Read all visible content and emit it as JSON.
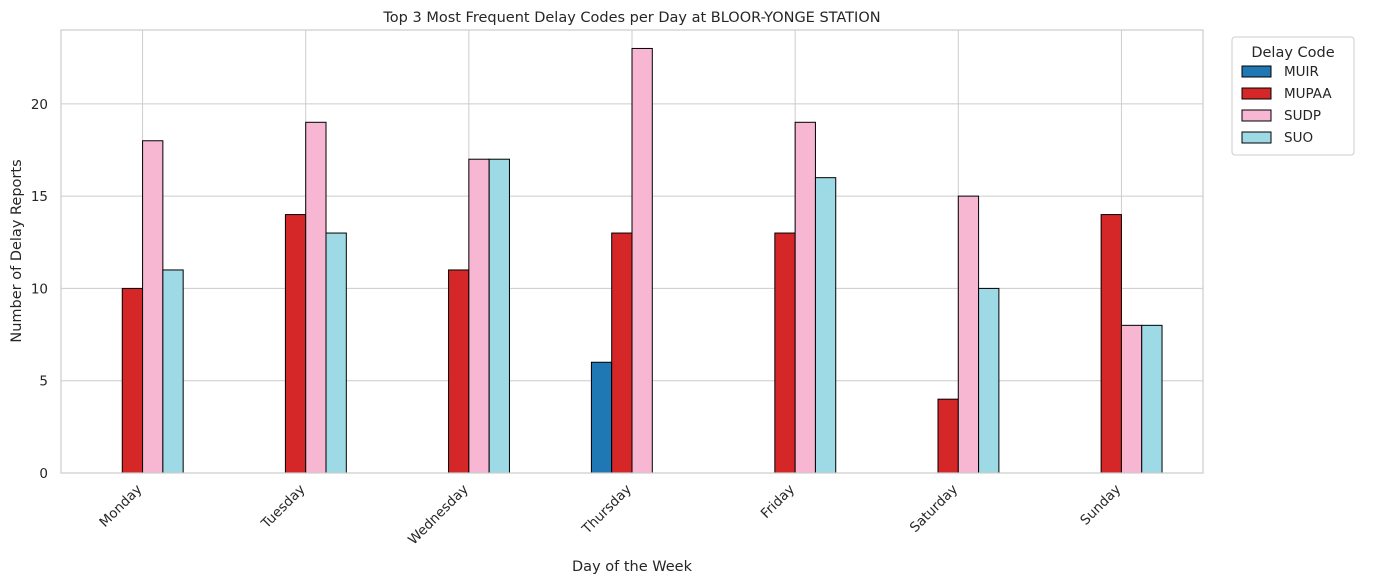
{
  "chart_data": {
    "type": "bar",
    "title": "Top 3 Most Frequent Delay Codes per Day at BLOOR-YONGE STATION",
    "xlabel": "Day of the Week",
    "ylabel": "Number of Delay Reports",
    "categories": [
      "Monday",
      "Tuesday",
      "Wednesday",
      "Thursday",
      "Friday",
      "Saturday",
      "Sunday"
    ],
    "series": [
      {
        "name": "MUIR",
        "color": "#1f77b4",
        "values": [
          0,
          0,
          0,
          6,
          0,
          0,
          0
        ]
      },
      {
        "name": "MUPAA",
        "color": "#d62728",
        "values": [
          10,
          14,
          11,
          13,
          13,
          4,
          14
        ]
      },
      {
        "name": "SUDP",
        "color": "#f7b6d2",
        "values": [
          18,
          19,
          17,
          23,
          19,
          15,
          8
        ]
      },
      {
        "name": "SUO",
        "color": "#9edae5",
        "values": [
          11,
          13,
          17,
          0,
          16,
          10,
          8
        ]
      }
    ],
    "ylim": [
      0,
      24
    ],
    "yticks": [
      0,
      5,
      10,
      15,
      20
    ],
    "grid": true,
    "legend": {
      "title": "Delay Code",
      "placement": "outside-top-right"
    }
  }
}
